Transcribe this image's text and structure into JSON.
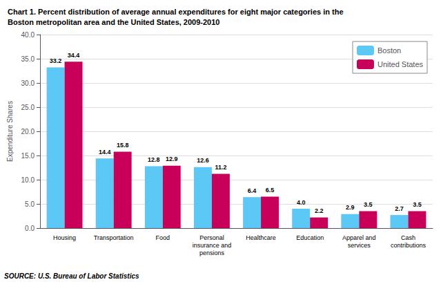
{
  "chart_data": {
    "type": "bar",
    "title": "Chart 1. Percent distribution of average annual expenditures for eight major categories in the\nBoston metropolitan area and the United States, 2009-2010",
    "categories": [
      "Housing",
      "Transportation",
      "Food",
      "Personal\ninsurance and\npensions",
      "Healthcare",
      "Education",
      "Apparel and\nservices",
      "Cash\ncontributions"
    ],
    "series": [
      {
        "name": "Boston",
        "color": "#5bc8f5",
        "values": [
          33.2,
          14.4,
          12.8,
          12.6,
          6.4,
          4.0,
          2.9,
          2.7
        ],
        "value_labels": [
          "33.2",
          "14.4",
          "12.8",
          "12.6",
          "6.4",
          "4.0",
          "2.9",
          "2.7"
        ]
      },
      {
        "name": "United States",
        "color": "#c8005a",
        "values": [
          34.4,
          15.8,
          12.9,
          11.2,
          6.5,
          2.2,
          3.5,
          3.5
        ],
        "value_labels": [
          "34.4",
          "15.8",
          "12.9",
          "11.2",
          "6.5",
          "2.2",
          "3.5",
          "3.5"
        ]
      }
    ],
    "ylabel": "Expenditure Shares",
    "ylim": [
      0,
      40
    ],
    "yticks": [
      {
        "value": 0,
        "label": "0.0"
      },
      {
        "value": 5,
        "label": "5.0"
      },
      {
        "value": 10,
        "label": "10.0"
      },
      {
        "value": 15,
        "label": "15.0"
      },
      {
        "value": 20,
        "label": "20.0"
      },
      {
        "value": 25,
        "label": "25.0"
      },
      {
        "value": 30,
        "label": "30.0"
      },
      {
        "value": 35,
        "label": "35.0"
      },
      {
        "value": 40,
        "label": "40.0"
      }
    ],
    "grid": true,
    "legend": "upper right",
    "data_labels": true,
    "annotations": [
      "SOURCE: U.S. Bureau of Labor Statistics"
    ]
  }
}
